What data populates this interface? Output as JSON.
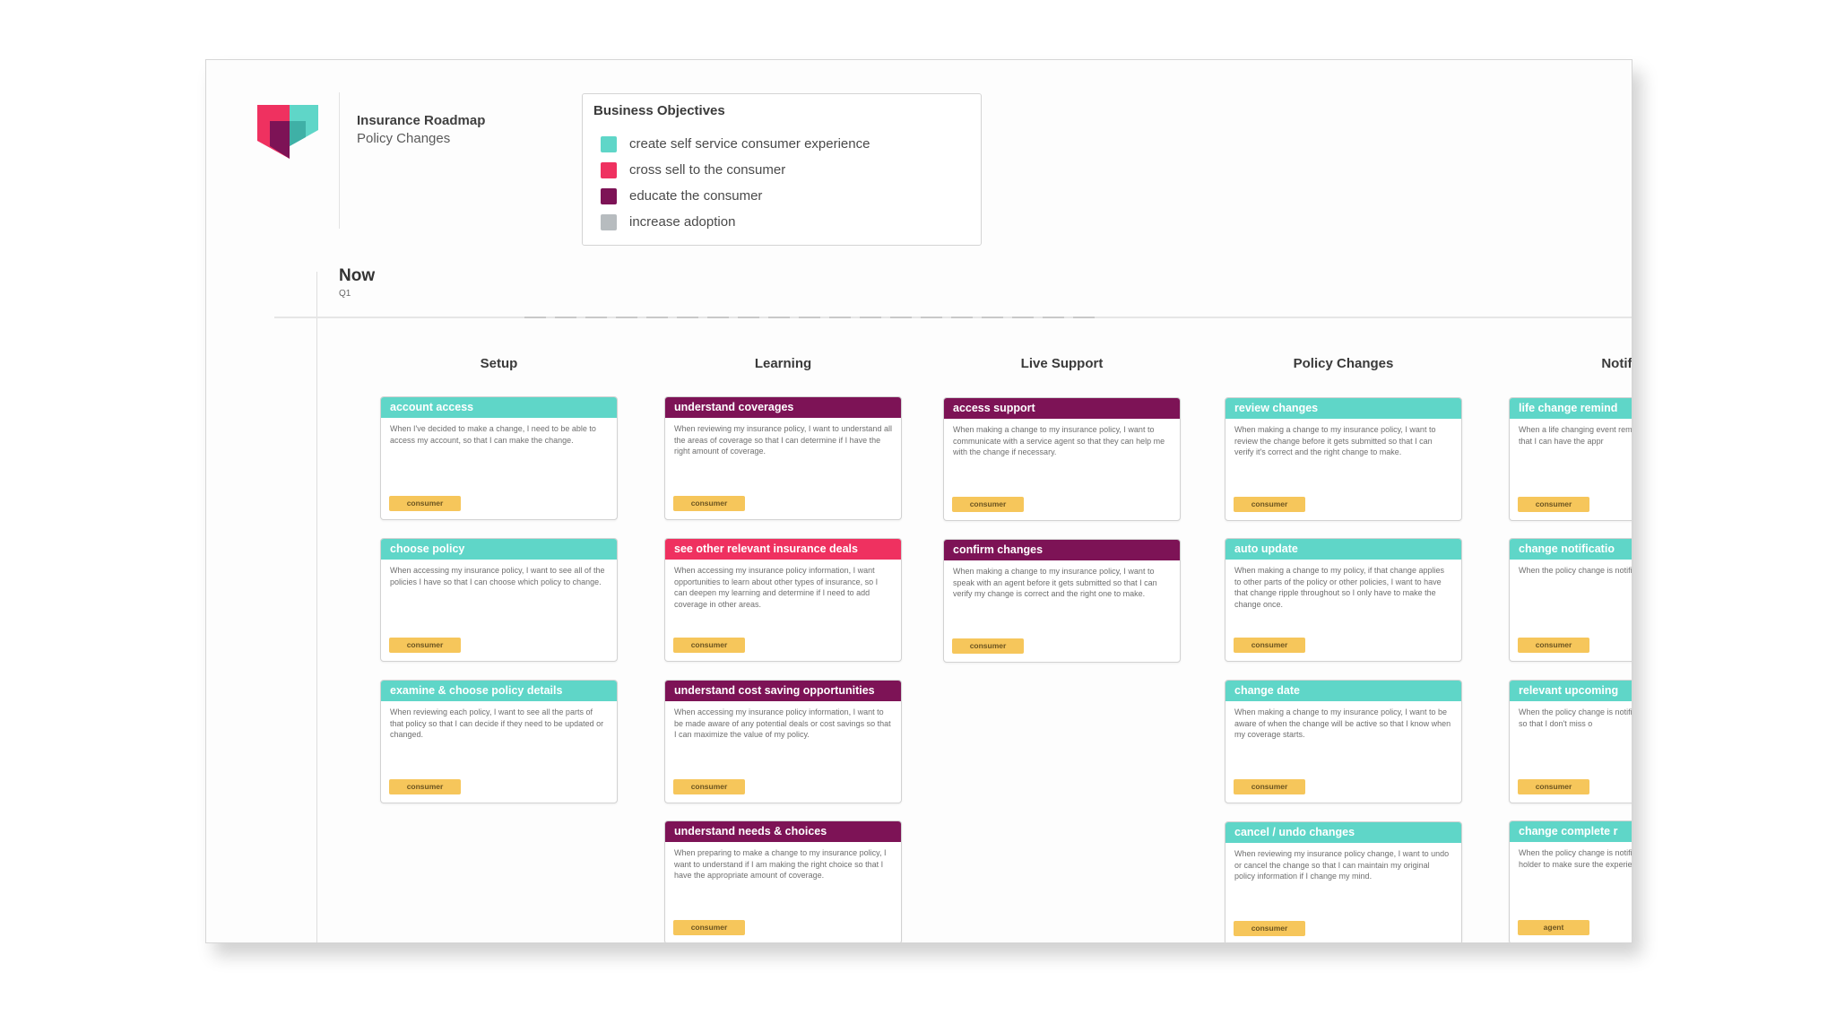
{
  "header": {
    "title": "Insurance Roadmap",
    "subtitle": "Policy Changes"
  },
  "objectives": {
    "title": "Business Objectives",
    "items": [
      {
        "label": "create self service consumer experience",
        "color": "#5fd6c8"
      },
      {
        "label": "cross sell to the consumer",
        "color": "#ef3160"
      },
      {
        "label": "educate the consumer",
        "color": "#7d1356"
      },
      {
        "label": "increase adoption",
        "color": "#b7bcbf"
      }
    ]
  },
  "release": {
    "title": "Now",
    "subtitle": "Q1"
  },
  "columns": [
    {
      "title": "Setup",
      "cards": [
        {
          "title": "account access",
          "color": "teal",
          "body": "When I've decided to make a change, I need to be able to access my account, so that I can make the change.",
          "tag": "consumer"
        },
        {
          "title": "choose policy",
          "color": "teal",
          "body": "When accessing my insurance policy, I want to see all of the policies I have so that I can choose which policy to change.",
          "tag": "consumer"
        },
        {
          "title": "examine & choose policy details",
          "color": "teal",
          "body": "When reviewing each policy, I want to see all the parts of that policy so that I can decide if they need to be updated or changed.",
          "tag": "consumer"
        }
      ]
    },
    {
      "title": "Learning",
      "cards": [
        {
          "title": "understand coverages",
          "color": "plum",
          "body": "When reviewing my insurance policy, I want to understand all the areas of coverage so that I can determine if I have the right amount of coverage.",
          "tag": "consumer"
        },
        {
          "title": "see other relevant insurance deals",
          "color": "pink",
          "body": "When accessing my insurance policy information, I want opportunities to learn about other types of insurance, so I can deepen my learning and determine if I need to add coverage in other areas.",
          "tag": "consumer"
        },
        {
          "title": "understand cost saving opportunities",
          "color": "plum",
          "body": "When accessing my insurance policy information, I want to be made aware of any potential deals or cost savings so that I can maximize the value of my policy.",
          "tag": "consumer"
        },
        {
          "title": "understand needs & choices",
          "color": "plum",
          "body": "When preparing to make a change to my insurance policy, I want to understand if I am making the right choice so that I have the appropriate amount of coverage.",
          "tag": "consumer"
        }
      ]
    },
    {
      "title": "Live Support",
      "cards": [
        {
          "title": "access support",
          "color": "plum",
          "body": "When making a change to my insurance policy, I want to communicate with a service agent so that they can help me with the change if necessary.",
          "tag": "consumer"
        },
        {
          "title": "confirm changes",
          "color": "plum",
          "body": "When making a change to my insurance policy, I want to speak with an agent before it gets submitted so that I can verify my change is correct and the right one to make.",
          "tag": "consumer"
        }
      ]
    },
    {
      "title": "Policy Changes",
      "cards": [
        {
          "title": "review changes",
          "color": "teal",
          "body": "When making a change to my insurance policy, I want to review the change before it gets submitted so that I can verify it's correct and the right change to make.",
          "tag": "consumer"
        },
        {
          "title": "auto update",
          "color": "teal",
          "body": "When making a change to my policy, if that change applies to other parts of the policy or other policies, I want to have that change ripple throughout so I only have to make the change once.",
          "tag": "consumer"
        },
        {
          "title": "change date",
          "color": "teal",
          "body": "When making a change to my insurance policy, I want to be aware of when the change will be active so that I know when my coverage starts.",
          "tag": "consumer"
        },
        {
          "title": "cancel / undo changes",
          "color": "teal",
          "body": "When reviewing my insurance policy change, I want to undo or cancel the change so that I can maintain my original policy information if I change my mind.",
          "tag": "consumer"
        }
      ]
    },
    {
      "title": "Notific",
      "cards": [
        {
          "title": "life change remind",
          "color": "teal",
          "body": "When a life changing event remember to make a chang so that I can have the appr",
          "tag": "consumer"
        },
        {
          "title": "change notificatio",
          "color": "teal",
          "body": "When the policy change is notified so that I'm confide",
          "tag": "consumer"
        },
        {
          "title": "relevant upcoming",
          "color": "teal",
          "body": "When the policy change is notified of any important o future so that I don't miss o",
          "tag": "consumer"
        },
        {
          "title": "change complete r",
          "color": "teal",
          "body": "When the policy change is notified immediately so tha policy holder to make sure the experience and verify t my AMS.",
          "tag": "agent"
        }
      ]
    }
  ]
}
